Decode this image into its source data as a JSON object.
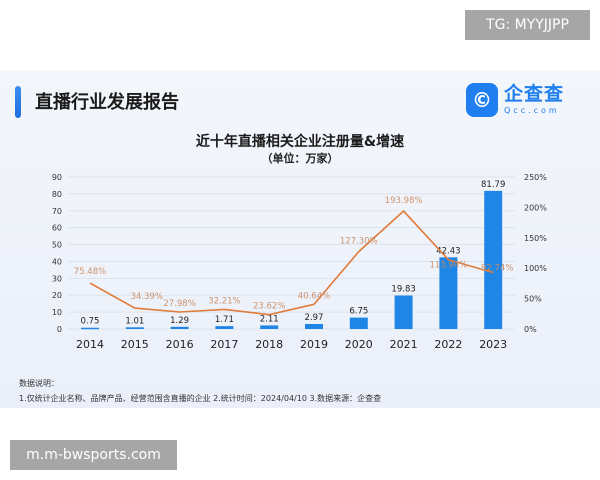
{
  "header": {
    "title": "直播行业发展报告",
    "logo_cn": "企查查",
    "logo_en": "Qcc.com",
    "logo_icon": "qcc-logo-icon"
  },
  "chart_data": {
    "type": "bar+line",
    "title": "近十年直播相关企业注册量&增速",
    "subtitle": "（单位：万家）",
    "categories": [
      "2014",
      "2015",
      "2016",
      "2017",
      "2018",
      "2019",
      "2020",
      "2021",
      "2022",
      "2023"
    ],
    "series": [
      {
        "type": "bar",
        "axis": "left",
        "values": [
          0.75,
          1.01,
          1.29,
          1.71,
          2.11,
          2.97,
          6.75,
          19.83,
          42.43,
          81.79
        ],
        "labels": [
          "0.75",
          "1.01",
          "1.29",
          "1.71",
          "2.11",
          "2.97",
          "6.75",
          "19.83",
          "42.43",
          "81.79"
        ],
        "color": "#1f86e6"
      },
      {
        "type": "line",
        "axis": "right",
        "values": [
          75.48,
          34.39,
          27.98,
          32.21,
          23.62,
          40.64,
          127.3,
          193.98,
          113.94,
          92.74
        ],
        "labels": [
          "75.48%",
          "34.39%",
          "27.98%",
          "32.21%",
          "23.62%",
          "40.64%",
          "127.30%",
          "193.98%",
          "113.94%",
          "92.74%"
        ],
        "color": "#e07b39"
      }
    ],
    "y_left": {
      "range": [
        0,
        90
      ],
      "ticks": [
        "0",
        "10",
        "20",
        "30",
        "40",
        "50",
        "60",
        "70",
        "80",
        "90"
      ]
    },
    "y_right": {
      "range": [
        0,
        250
      ],
      "ticks": [
        "0%",
        "50%",
        "100%",
        "150%",
        "200%",
        "250%"
      ]
    },
    "grid": true
  },
  "notes": {
    "heading": "数据说明：",
    "line": "1.仅统计企业名称、品牌产品、经营范围含直播的企业  2.统计时间：2024/04/10   3.数据来源：企查查"
  },
  "watermarks": {
    "top": "TG: MYYJJPP",
    "bottom": "m.m-bwsports.com"
  }
}
